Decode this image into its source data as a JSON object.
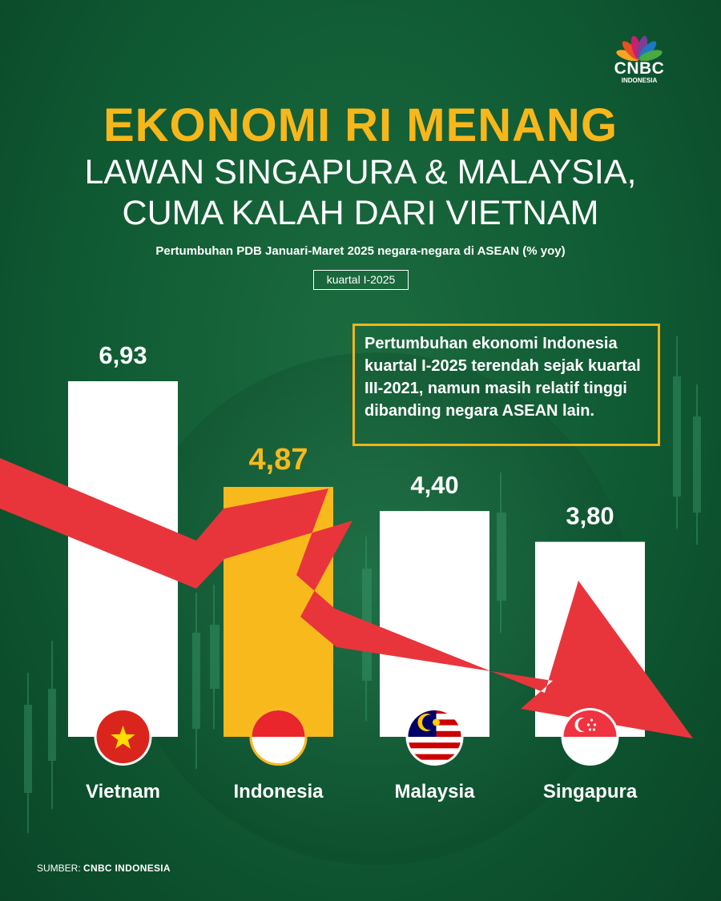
{
  "brand": {
    "name": "CNBC",
    "sub": "INDONESIA"
  },
  "header": {
    "title": "EKONOMI RI MENANG",
    "line1": "LAWAN SINGAPURA & MALAYSIA,",
    "line2": "CUMA KALAH DARI VIETNAM",
    "subtitle": "Pertumbuhan PDB Januari-Maret 2025 negara-negara di ASEAN (% yoy)",
    "period": "kuartal I-2025"
  },
  "note": "Pertumbuhan ekonomi Indonesia kuartal I-2025 terendah sejak kuartal III-2021, namun masih relatif tinggi dibanding negara ASEAN lain.",
  "source": {
    "label": "SUMBER:",
    "name": "CNBC INDONESIA"
  },
  "chart_data": {
    "type": "bar",
    "categories": [
      "Vietnam",
      "Indonesia",
      "Malaysia",
      "Singapura"
    ],
    "values": [
      6.93,
      4.87,
      4.4,
      3.8
    ],
    "value_labels": [
      "6,93",
      "4,87",
      "4,40",
      "3,80"
    ],
    "highlight": "Indonesia",
    "colors": {
      "bar": "#ffffff",
      "highlight": "#f8b91c",
      "highlight_label": "#f8b91c",
      "label": "#ffffff",
      "trend_arrow": "#e8353b",
      "background": "#11603a"
    },
    "flags": [
      "vietnam-flag-icon",
      "indonesia-flag-icon",
      "malaysia-flag-icon",
      "singapore-flag-icon"
    ],
    "ylim": [
      0,
      7
    ],
    "grid": false,
    "legend": "none"
  }
}
